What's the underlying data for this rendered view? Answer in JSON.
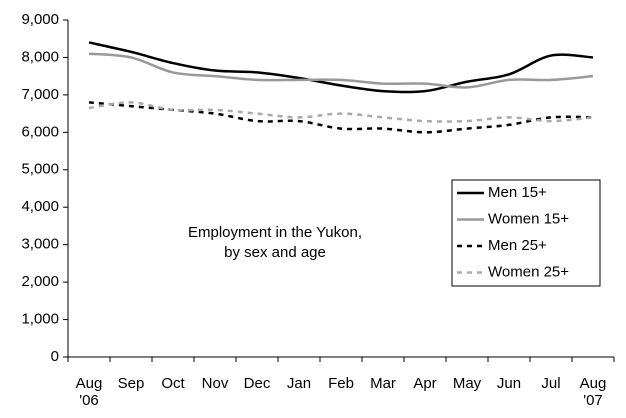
{
  "chart_data": {
    "type": "line",
    "annotation": [
      "Employment in the Yukon,",
      "by sex and age"
    ],
    "categories": [
      "Aug\n'06",
      "Sep",
      "Oct",
      "Nov",
      "Dec",
      "Jan",
      "Feb",
      "Mar",
      "Apr",
      "May",
      "Jun",
      "Jul",
      "Aug\n'07"
    ],
    "series": [
      {
        "name": "Men 15+",
        "color": "#000000",
        "dashed": false,
        "values": [
          8400,
          8150,
          7850,
          7650,
          7600,
          7450,
          7250,
          7100,
          7100,
          7350,
          7550,
          8050,
          8000
        ]
      },
      {
        "name": "Women 15+",
        "color": "#999999",
        "dashed": false,
        "values": [
          8100,
          8000,
          7600,
          7500,
          7400,
          7400,
          7400,
          7300,
          7300,
          7200,
          7400,
          7400,
          7500
        ]
      },
      {
        "name": "Men 25+",
        "color": "#000000",
        "dashed": true,
        "values": [
          6800,
          6700,
          6600,
          6500,
          6300,
          6300,
          6100,
          6100,
          6000,
          6100,
          6200,
          6400,
          6400
        ]
      },
      {
        "name": "Women 25+",
        "color": "#aaaaaa",
        "dashed": true,
        "values": [
          6650,
          6800,
          6600,
          6600,
          6500,
          6400,
          6500,
          6400,
          6300,
          6300,
          6400,
          6300,
          6400
        ]
      }
    ],
    "ylim": [
      0,
      9000
    ],
    "yticks": [
      0,
      {
        "value": 1000,
        "label": "1,000"
      },
      {
        "value": 2000,
        "label": "2,000"
      },
      {
        "value": 3000,
        "label": "3,000"
      },
      {
        "value": 4000,
        "label": "4,000"
      },
      {
        "value": 5000,
        "label": "5,000"
      },
      {
        "value": 6000,
        "label": "6,000"
      },
      {
        "value": 7000,
        "label": "7,000"
      },
      {
        "value": 8000,
        "label": "8,000"
      },
      {
        "value": 9000,
        "label": "9,000"
      }
    ],
    "legend": "right"
  }
}
